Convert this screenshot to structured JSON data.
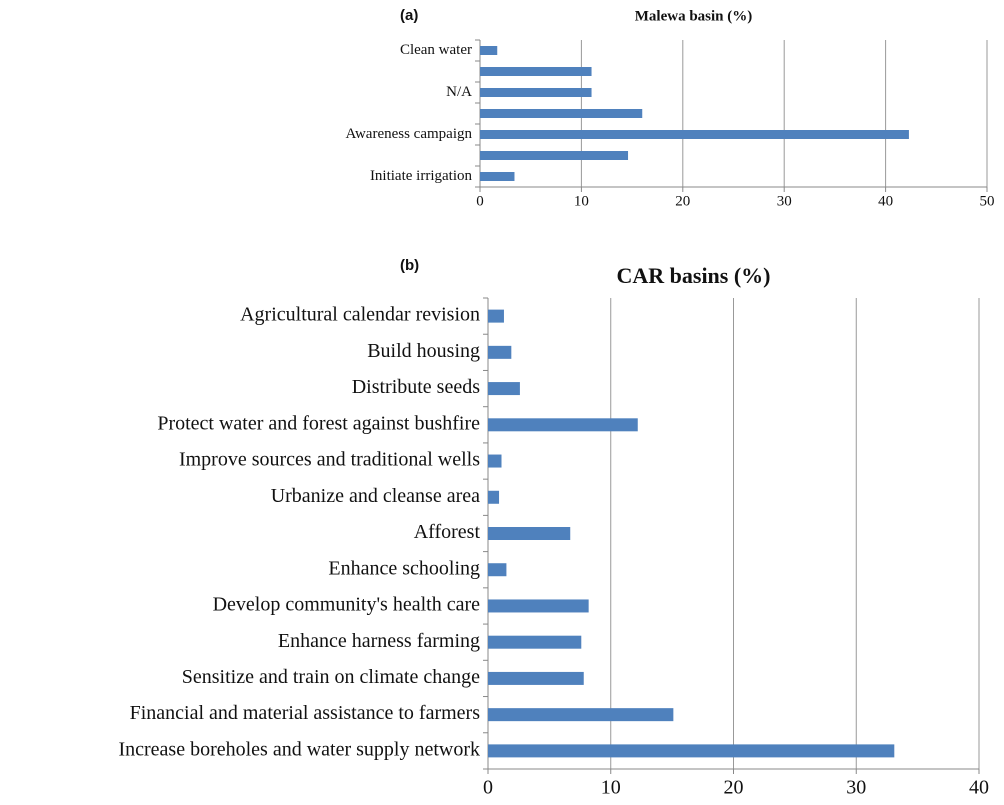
{
  "chart_data": [
    {
      "type": "bar",
      "orientation": "horizontal",
      "panel_label": "(a)",
      "title": "Malewa basin (%)",
      "categories": [
        "Clean water",
        null,
        "N/A",
        null,
        "Awareness campaign",
        null,
        "Initiate irrigation"
      ],
      "values": [
        1.7,
        11,
        11,
        16,
        42.3,
        14.6,
        3.4
      ],
      "color": "#4f81bd",
      "xlim": [
        0,
        50
      ],
      "xticks": [
        0,
        10,
        20,
        30,
        40,
        50
      ],
      "grid": true
    },
    {
      "type": "bar",
      "orientation": "horizontal",
      "panel_label": "(b)",
      "title": "CAR basins (%)",
      "categories": [
        "Agricultural calendar revision",
        "Build housing",
        "Distribute  seeds",
        "Protect water and forest against bushfire",
        "Improve sources and traditional wells",
        "Urbanize and cleanse area",
        "Afforest",
        "Enhance schooling",
        "Develop community's health care",
        "Enhance harness farming",
        "Sensitize and train on climate change",
        "Financial and material assistance to farmers",
        "Increase boreholes and water supply network"
      ],
      "values": [
        1.3,
        1.9,
        2.6,
        12.2,
        1.1,
        0.9,
        6.7,
        1.5,
        8.2,
        7.6,
        7.8,
        15.1,
        33.1
      ],
      "color": "#4f81bd",
      "xlim": [
        0,
        40
      ],
      "xticks": [
        0,
        10,
        20,
        30,
        40
      ],
      "grid": true
    }
  ]
}
